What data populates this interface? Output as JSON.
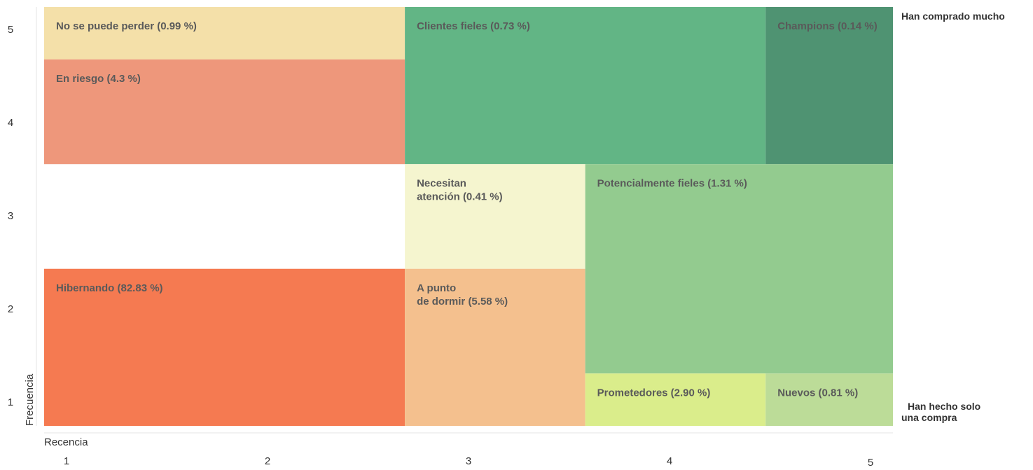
{
  "chart_data": {
    "type": "treemap",
    "xlabel": "Recencia",
    "ylabel": "Frecuencia",
    "x_ticks": [
      "1",
      "2",
      "3",
      "4",
      "5"
    ],
    "y_ticks": [
      "1",
      "2",
      "3",
      "4",
      "5"
    ],
    "x_range": [
      1,
      5
    ],
    "y_range": [
      1,
      5
    ],
    "top_right_note": "Han comprado mucho",
    "bottom_right_note": [
      "Han hecho solo",
      "una compra"
    ],
    "segments": [
      {
        "key": "no-se-puede-perder",
        "label": [
          "No se puede perder (0.99 %)"
        ],
        "percent": 0.99,
        "color": "#f4e0a9",
        "recency": [
          1,
          2.7
        ],
        "frequency": [
          4.5,
          5
        ]
      },
      {
        "key": "en-riesgo",
        "label": [
          "En riesgo (4.3 %)"
        ],
        "percent": 4.3,
        "color": "#ee977b",
        "recency": [
          1,
          2.7
        ],
        "frequency": [
          3.5,
          4.5
        ]
      },
      {
        "key": "hibernando",
        "label": [
          "Hibernando (82.83 %)"
        ],
        "percent": 82.83,
        "color": "#f57a51",
        "recency": [
          1,
          2.7
        ],
        "frequency": [
          1,
          2.5
        ]
      },
      {
        "key": "clientes-fieles",
        "label": [
          "Clientes fieles (0.73 %)"
        ],
        "percent": 0.73,
        "color": "#62b585",
        "recency": [
          2.7,
          4.4
        ],
        "frequency": [
          3.5,
          5
        ]
      },
      {
        "key": "champions",
        "label": [
          "Champions (0.14 %)"
        ],
        "percent": 0.14,
        "color": "#4f9372",
        "recency": [
          4.4,
          5
        ],
        "frequency": [
          3.5,
          5
        ]
      },
      {
        "key": "necesitan-atencion",
        "label": [
          "Necesitan",
          "atención (0.41 %)"
        ],
        "percent": 0.41,
        "color": "#f5f5cf",
        "recency": [
          2.7,
          3.55
        ],
        "frequency": [
          2.5,
          3.5
        ]
      },
      {
        "key": "a-punto-de-dormir",
        "label": [
          "A punto",
          "de dormir (5.58 %)"
        ],
        "percent": 5.58,
        "color": "#f4c08e",
        "recency": [
          2.7,
          3.55
        ],
        "frequency": [
          1,
          2.5
        ]
      },
      {
        "key": "potencialmente-fieles",
        "label": [
          "Potencialmente fieles (1.31 %)"
        ],
        "percent": 1.31,
        "color": "#93cb8f",
        "recency": [
          3.55,
          5
        ],
        "frequency": [
          1.5,
          3.5
        ]
      },
      {
        "key": "prometedores",
        "label": [
          "Prometedores (2.90 %)"
        ],
        "percent": 2.9,
        "color": "#daed8b",
        "recency": [
          3.55,
          4.4
        ],
        "frequency": [
          1,
          1.5
        ]
      },
      {
        "key": "nuevos",
        "label": [
          "Nuevos (0.81 %)"
        ],
        "percent": 0.81,
        "color": "#bcdc98",
        "recency": [
          4.4,
          5
        ],
        "frequency": [
          1,
          1.5
        ]
      }
    ]
  }
}
